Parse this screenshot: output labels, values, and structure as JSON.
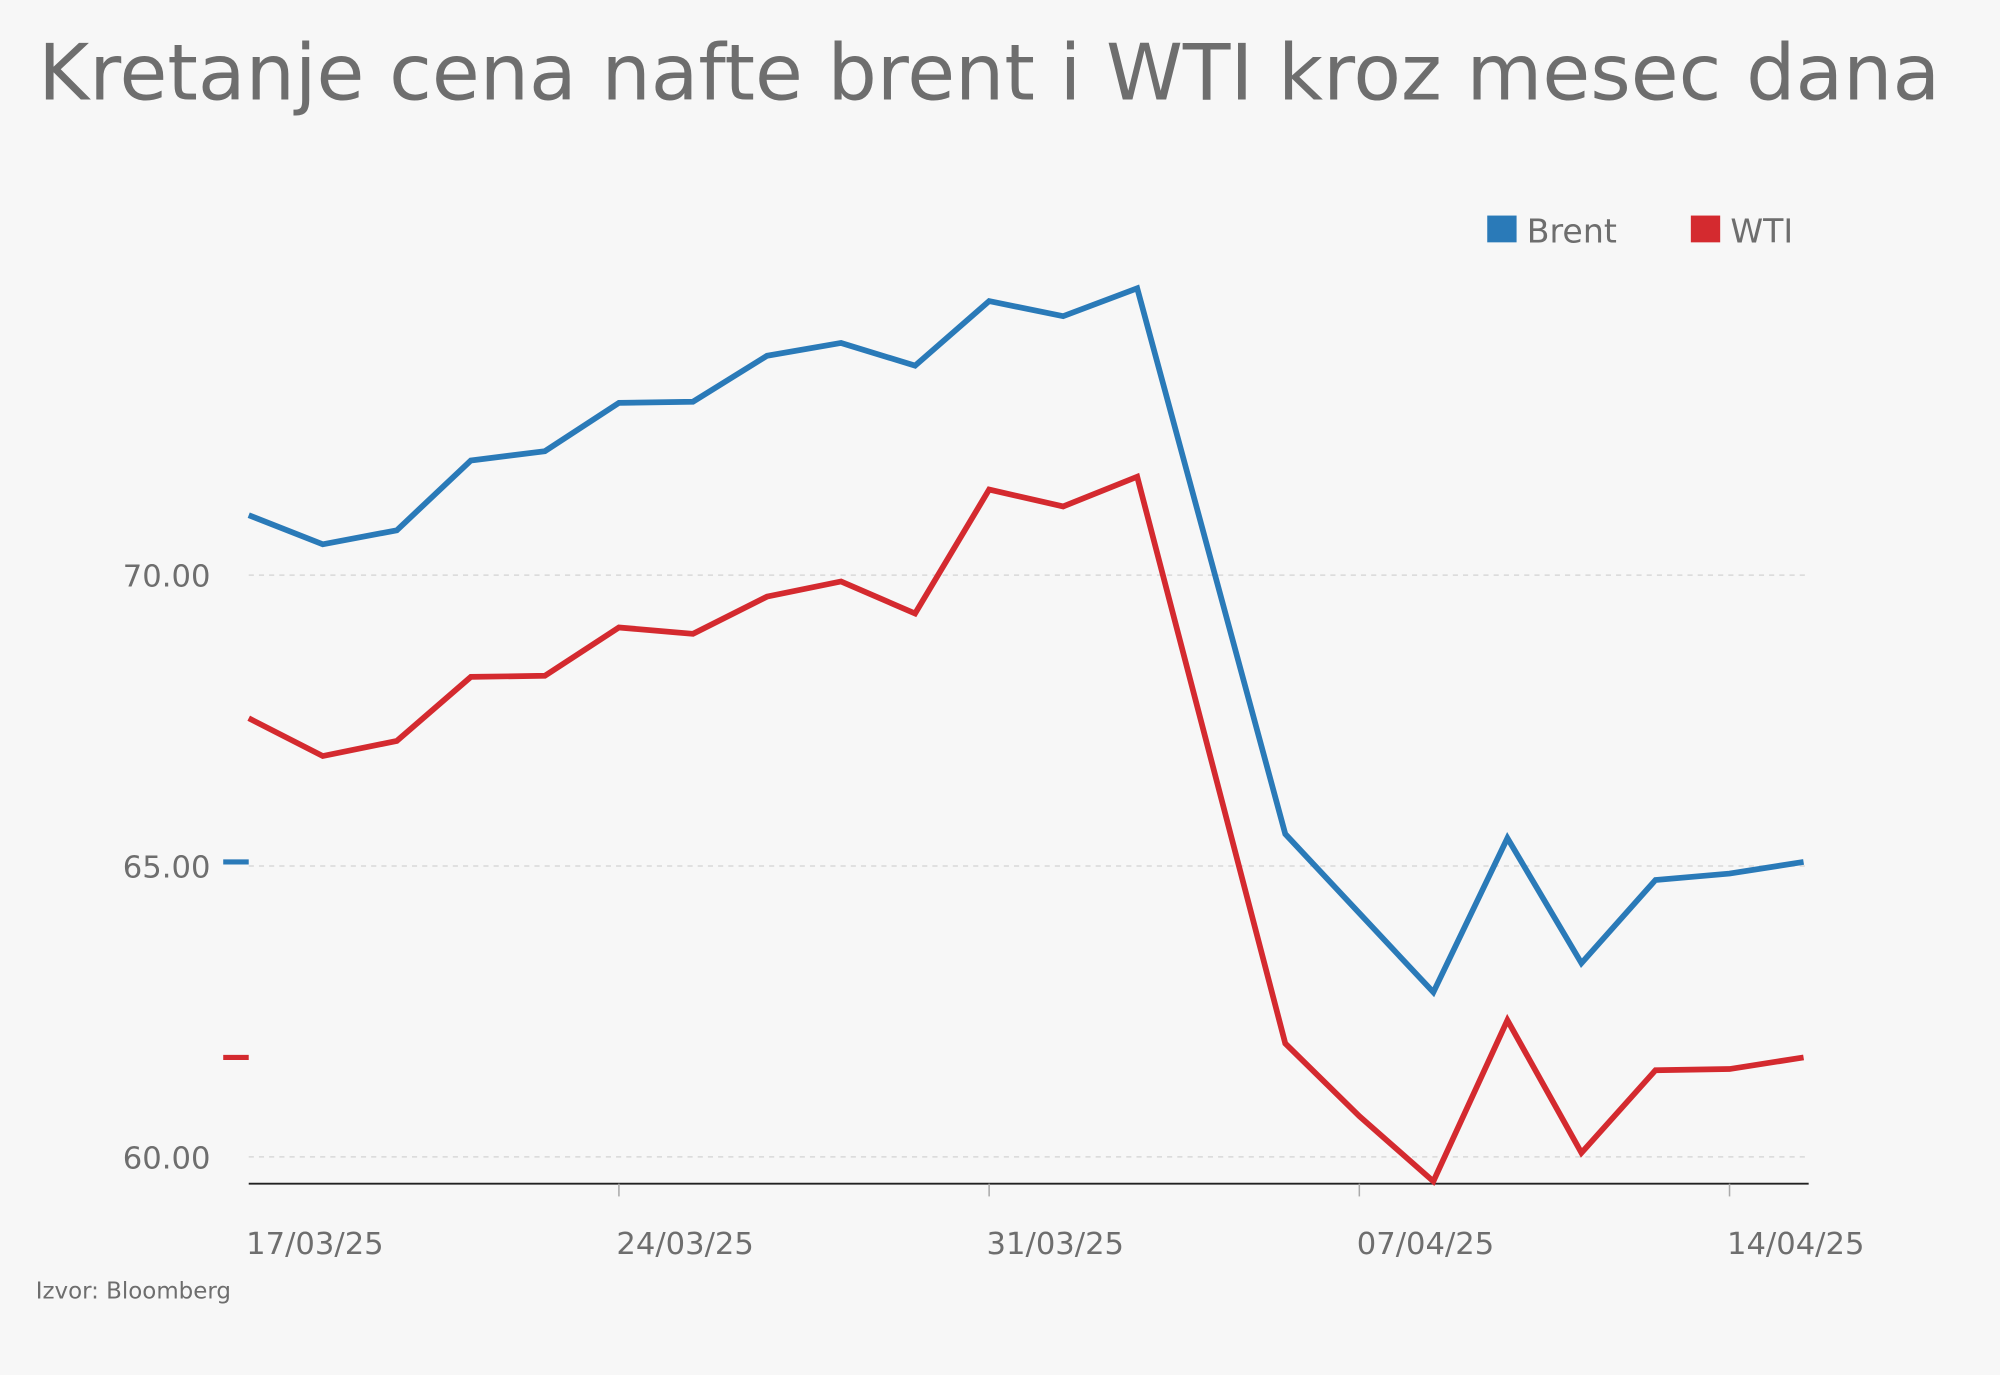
{
  "chart_data": {
    "type": "line",
    "title": "Kretanje cena nafte brent i WTI kroz mesec dana",
    "source": "Izvor: Bloomberg",
    "categories": [
      "17/03/25",
      null,
      null,
      null,
      null,
      "24/03/25",
      null,
      null,
      null,
      null,
      "31/03/25",
      null,
      null,
      null,
      null,
      "07/04/25",
      null,
      null,
      null,
      null,
      "14/04/25",
      null
    ],
    "series": [
      {
        "name": "Brent",
        "color": "#2a7ab8",
        "values": [
          71.03,
          70.53,
          70.77,
          71.97,
          72.13,
          72.96,
          72.98,
          73.77,
          73.99,
          73.6,
          74.71,
          74.45,
          74.93,
          70.24,
          65.55,
          64.19,
          62.83,
          65.48,
          63.33,
          64.76,
          64.87,
          65.07
        ]
      },
      {
        "name": "WTI",
        "color": "#d42a2f",
        "values": [
          67.54,
          66.89,
          67.15,
          68.25,
          68.27,
          69.1,
          68.99,
          69.63,
          69.89,
          69.34,
          71.47,
          71.18,
          71.69,
          66.82,
          61.95,
          60.7,
          59.58,
          62.35,
          60.07,
          61.49,
          61.51,
          61.71
        ]
      }
    ],
    "ylim": [
      59.54,
      75.5
    ],
    "yticks": [
      {
        "value": 60,
        "label": "60.00"
      },
      {
        "value": 65,
        "label": "65.00"
      },
      {
        "value": 70,
        "label": "70.00"
      }
    ],
    "grid": true,
    "legend": "top-right"
  }
}
